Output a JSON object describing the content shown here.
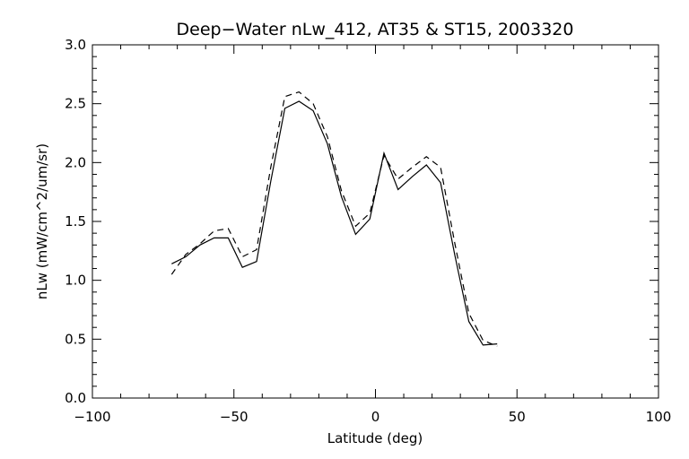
{
  "chart_data": {
    "type": "line",
    "title": "Deep−Water nLw_412, AT35 & ST15, 2003320",
    "xlabel": "Latitude (deg)",
    "ylabel": "nLw (mW/cm^2/um/sr)",
    "xlim": [
      -100,
      100
    ],
    "ylim": [
      0.0,
      3.0
    ],
    "x_ticks": [
      -100,
      -50,
      0,
      50,
      100
    ],
    "x_tick_labels": [
      "−100",
      "−50",
      "0",
      "50",
      "100"
    ],
    "y_ticks": [
      0.0,
      0.5,
      1.0,
      1.5,
      2.0,
      2.5,
      3.0
    ],
    "y_tick_labels": [
      "0.0",
      "0.5",
      "1.0",
      "1.5",
      "2.0",
      "2.5",
      "3.0"
    ],
    "grid": false,
    "series": [
      {
        "style": "solid",
        "x": [
          -72,
          -67,
          -62,
          -57,
          -52,
          -47,
          -42,
          -37,
          -32,
          -27,
          -22,
          -17,
          -12,
          -7,
          -2,
          3,
          8,
          13,
          18,
          23,
          28,
          33,
          38,
          43
        ],
        "y": [
          1.14,
          1.2,
          1.3,
          1.36,
          1.36,
          1.11,
          1.16,
          1.84,
          2.46,
          2.52,
          2.44,
          2.16,
          1.71,
          1.39,
          1.52,
          2.08,
          1.77,
          1.88,
          1.98,
          1.83,
          1.22,
          0.65,
          0.45,
          0.46
        ]
      },
      {
        "style": "dashed",
        "x": [
          -72,
          -67,
          -62,
          -57,
          -52,
          -47,
          -42,
          -37,
          -32,
          -27,
          -22,
          -17,
          -12,
          -7,
          -2,
          3,
          8,
          13,
          18,
          23,
          28,
          33,
          38,
          43
        ],
        "y": [
          1.05,
          1.22,
          1.31,
          1.42,
          1.44,
          1.2,
          1.26,
          1.96,
          2.56,
          2.6,
          2.5,
          2.22,
          1.76,
          1.46,
          1.57,
          2.06,
          1.86,
          1.96,
          2.05,
          1.96,
          1.32,
          0.72,
          0.49,
          0.44
        ]
      }
    ]
  }
}
